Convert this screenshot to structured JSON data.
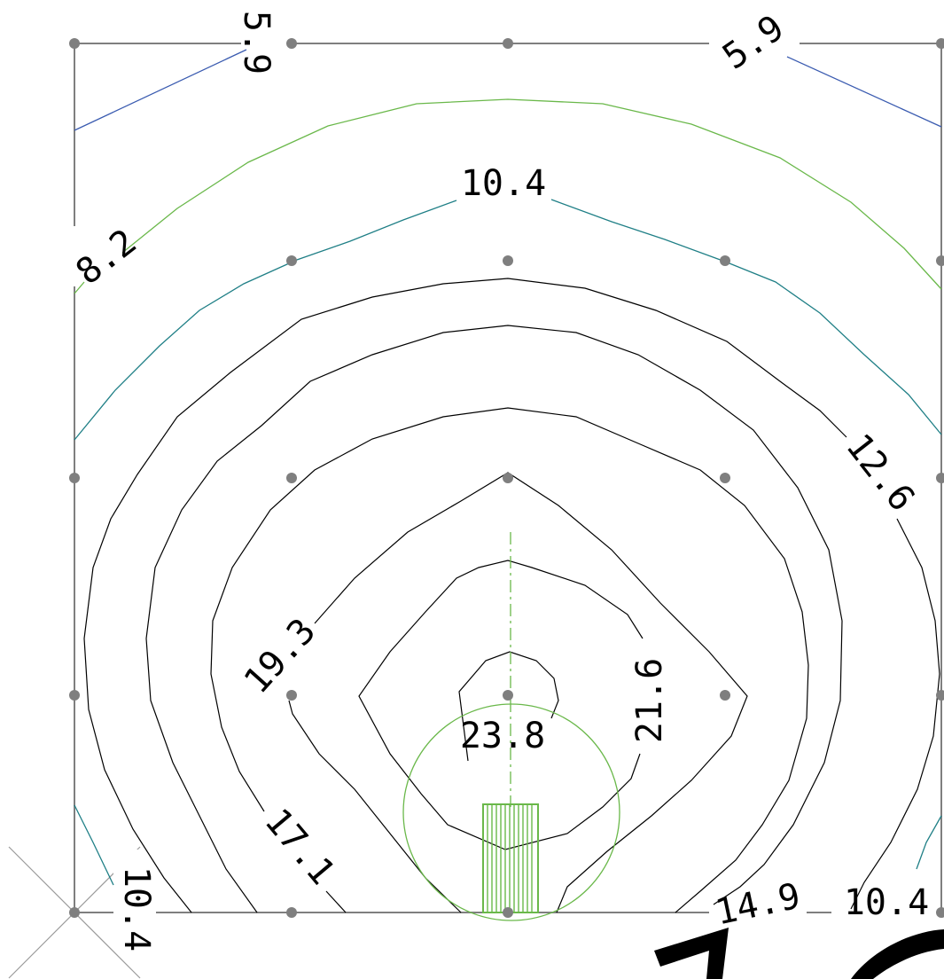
{
  "diagram": {
    "contour_labels": {
      "l_5_9_a": "5.9",
      "l_5_9_b": "5.9",
      "l_8_2": "8.2",
      "l_10_4_top": "10.4",
      "l_12_6": "12.6",
      "l_19_3": "19.3",
      "l_21_6": "21.6",
      "l_23_8": "23.8",
      "l_17_1": "17.1",
      "l_14_9": "14.9",
      "l_10_4_br": "10.4",
      "l_10_4_bl": "10.4"
    },
    "colors": {
      "grid": "#7f7f7f",
      "contour_dark": "#000000",
      "contour_blue": "#3a5bb0",
      "contour_green": "#6ab84a",
      "contour_teal": "#1f7f86",
      "luminaire": "#6ab84a"
    }
  }
}
